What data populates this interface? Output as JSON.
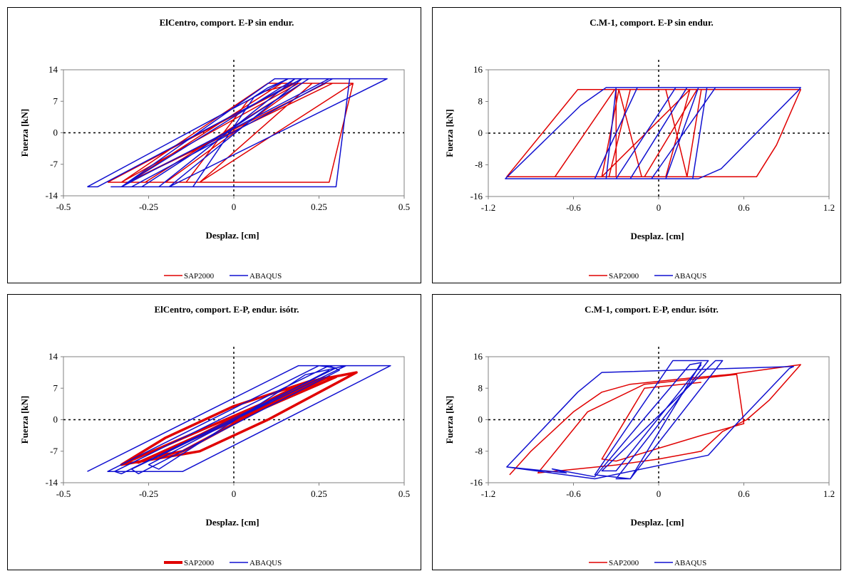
{
  "chart_data": [
    {
      "type": "line",
      "title": "ElCentro, comport. E-P sin endur.",
      "xlabel": "Desplaz. [cm]",
      "ylabel": "Fuerza [kN]",
      "xlim": [
        -0.5,
        0.5
      ],
      "ylim": [
        -14,
        14
      ],
      "xticks": [
        "-0.5",
        "-0.25",
        "0",
        "0.25",
        "0.5"
      ],
      "yticks": [
        "14",
        "7",
        "0",
        "-7",
        "-14"
      ],
      "grid": false,
      "legend": "bottom",
      "series": [
        {
          "name": "SAP2000",
          "color": "#e00000",
          "thick": false,
          "x": [
            -0.37,
            -0.33,
            0.19,
            0.23,
            0.35,
            -0.1,
            0.23,
            0.27,
            -0.31,
            0.14,
            0.35,
            0.28,
            -0.2,
            -0.36,
            -0.33,
            0.1,
            0.29,
            -0.31,
            -0.2,
            0.2,
            0.2,
            -0.26,
            -0.14,
            0.04,
            0.08,
            0.18,
            -0.37
          ],
          "y": [
            -11.0,
            -11.0,
            11.0,
            11.0,
            11.0,
            -11.0,
            11.0,
            11.0,
            -11.0,
            11.0,
            11.0,
            -11.0,
            -11.0,
            -11.0,
            -11.0,
            11.0,
            11.0,
            -11.0,
            -11.0,
            11.0,
            11.0,
            -11.0,
            -11.0,
            7.0,
            9.0,
            11.0,
            -11.0
          ]
        },
        {
          "name": "ABAQUS",
          "color": "#1010d0",
          "thick": false,
          "x": [
            -0.43,
            -0.4,
            0.2,
            0.22,
            0.45,
            -0.19,
            0.2,
            0.28,
            -0.33,
            0.18,
            0.34,
            0.3,
            -0.26,
            -0.36,
            -0.33,
            0.12,
            0.29,
            -0.3,
            -0.22,
            0.18,
            0.22,
            -0.27,
            -0.12,
            0.06,
            0.1,
            0.16,
            -0.43
          ],
          "y": [
            -12.0,
            -12.0,
            12.0,
            12.0,
            12.0,
            -12.0,
            12.0,
            12.0,
            -12.0,
            12.0,
            12.0,
            -12.0,
            -12.0,
            -12.0,
            -12.0,
            12.0,
            12.0,
            -12.0,
            -12.0,
            12.0,
            12.0,
            -12.0,
            -12.0,
            8.0,
            10.0,
            12.0,
            -12.0
          ]
        }
      ]
    },
    {
      "type": "line",
      "title": "C.M-1, comport. E-P sin endur.",
      "xlabel": "Desplaz. [cm]",
      "ylabel": "Fuerza [kN]",
      "xlim": [
        -1.2,
        1.2
      ],
      "ylim": [
        -16,
        16
      ],
      "xticks": [
        "-1.2",
        "-0.6",
        "0",
        "0.6",
        "1.2"
      ],
      "yticks": [
        "16",
        "8",
        "0",
        "-8",
        "-16"
      ],
      "grid": false,
      "legend": "bottom",
      "series": [
        {
          "name": "SAP2000",
          "color": "#e00000",
          "thick": false,
          "x": [
            -1.07,
            -0.57,
            1.0,
            0.83,
            0.69,
            0.3,
            -1.07,
            -0.73,
            -0.31,
            0.2,
            0.27,
            -0.1,
            -0.45,
            -0.35,
            -0.2,
            0.17,
            0.3,
            0.2,
            -0.12,
            -0.28,
            -0.4,
            0.22,
            0.05,
            -0.3,
            -0.3,
            0.05,
            0.2
          ],
          "y": [
            -11.0,
            11.0,
            11.0,
            -3.0,
            -11.0,
            -11.0,
            -11.0,
            -11.0,
            11.0,
            11.0,
            11.0,
            -11.0,
            -11.0,
            -11.0,
            11.0,
            11.0,
            11.0,
            -11.0,
            -11.0,
            11.0,
            -11.0,
            11.0,
            -11.0,
            -11.0,
            11.0,
            11.0,
            -11.0
          ]
        },
        {
          "name": "ABAQUS",
          "color": "#1010d0",
          "thick": false,
          "x": [
            -1.08,
            -0.55,
            -0.37,
            1.0,
            0.99,
            0.44,
            0.28,
            -1.08,
            -0.41,
            -0.37,
            -0.3,
            -0.18,
            0.15,
            0.34,
            0.24,
            -0.18,
            -0.45,
            -0.15,
            0.18,
            0.4,
            -0.05,
            -0.3,
            0.12,
            0.28,
            0.05,
            -0.2,
            0.2
          ],
          "y": [
            -11.5,
            7.0,
            11.5,
            11.5,
            11.0,
            -9.0,
            -11.5,
            -11.5,
            -11.5,
            -11.5,
            11.5,
            11.5,
            11.5,
            11.5,
            -11.5,
            -11.5,
            -11.5,
            11.5,
            11.5,
            11.5,
            -11.5,
            -11.5,
            11.5,
            11.5,
            -11.5,
            -11.5,
            11.5
          ]
        }
      ]
    },
    {
      "type": "line",
      "title": "ElCentro, comport. E-P, endur. isótr.",
      "xlabel": "Desplaz. [cm]",
      "ylabel": "Fuerza [kN]",
      "xlim": [
        -0.5,
        0.5
      ],
      "ylim": [
        -14,
        14
      ],
      "xticks": [
        "-0.5",
        "-0.25",
        "0",
        "0.25",
        "0.5"
      ],
      "yticks": [
        "14",
        "7",
        "0",
        "-7",
        "-14"
      ],
      "grid": false,
      "legend": "bottom",
      "series": [
        {
          "name": "SAP2000",
          "color": "#e00000",
          "thick": true,
          "x": [
            -0.33,
            -0.2,
            0.0,
            0.22,
            0.36,
            0.1,
            -0.1,
            -0.33,
            -0.3,
            0.25,
            0.3,
            -0.28,
            -0.25,
            0.28,
            0.2,
            -0.22,
            -0.15,
            0.22
          ],
          "y": [
            -10.0,
            -4.0,
            3.0,
            8.5,
            10.5,
            0.0,
            -7.0,
            -10.0,
            -9.0,
            9.0,
            9.5,
            -9.5,
            -8.5,
            9.5,
            8.0,
            -8.0,
            -7.0,
            8.0
          ]
        },
        {
          "name": "ABAQUS",
          "color": "#1010d0",
          "thick": false,
          "x": [
            -0.43,
            0.19,
            0.46,
            -0.15,
            -0.37,
            0.25,
            0.3,
            -0.33,
            -0.35,
            0.28,
            0.31,
            -0.28,
            -0.3,
            0.33,
            0.21,
            -0.22,
            -0.25,
            0.28
          ],
          "y": [
            -11.5,
            12.0,
            12.0,
            -11.5,
            -11.5,
            12.0,
            11.5,
            -12.0,
            -11.5,
            12.0,
            11.0,
            -12.0,
            -11.0,
            12.0,
            10.0,
            -11.0,
            -10.0,
            11.0
          ]
        }
      ]
    },
    {
      "type": "line",
      "title": "C.M-1, comport. E-P, endur. isótr.",
      "xlabel": "Desplaz. [cm]",
      "ylabel": "Fuerza [kN]",
      "xlim": [
        -1.2,
        1.2
      ],
      "ylim": [
        -16,
        16
      ],
      "xticks": [
        "-1.2",
        "-0.6",
        "0",
        "0.6",
        "1.2"
      ],
      "yticks": [
        "16",
        "8",
        "0",
        "-8",
        "-16"
      ],
      "grid": false,
      "legend": "bottom",
      "series": [
        {
          "name": "SAP2000",
          "color": "#e00000",
          "thick": false,
          "x": [
            -1.05,
            -0.9,
            -0.6,
            -0.4,
            -0.2,
            0.2,
            0.5,
            1.0,
            0.78,
            0.62,
            0.45,
            0.3,
            0.0,
            -0.3,
            -0.85,
            -0.5,
            -0.1,
            0.3,
            0.55,
            0.6,
            0.3,
            -0.3,
            -0.4,
            -0.1,
            0.3
          ],
          "y": [
            -14.0,
            -8.0,
            2.0,
            7.0,
            9.0,
            10.5,
            11.5,
            14.0,
            5.0,
            0.0,
            -3.0,
            -8.0,
            -10.0,
            -11.5,
            -13.5,
            2.0,
            9.0,
            10.5,
            11.5,
            -1.0,
            -4.0,
            -10.5,
            -10.0,
            8.0,
            9.5
          ]
        },
        {
          "name": "ABAQUS",
          "color": "#1010d0",
          "thick": false,
          "x": [
            -1.07,
            -0.57,
            -0.4,
            0.95,
            0.92,
            0.55,
            0.35,
            -0.45,
            -1.07,
            -0.65,
            -0.75,
            -0.45,
            0.22,
            0.3,
            -0.2,
            -0.45,
            0.1,
            0.35,
            -0.3,
            -0.2,
            0.45,
            0.4,
            -0.4,
            -0.3,
            0.3
          ],
          "y": [
            -12.0,
            7.0,
            12.0,
            13.5,
            13.0,
            -1.0,
            -9.0,
            -15.0,
            -12.0,
            -13.5,
            -12.5,
            -14.5,
            14.0,
            14.5,
            -15.0,
            -14.0,
            15.0,
            15.0,
            -15.0,
            -15.0,
            15.0,
            15.0,
            -13.0,
            -13.0,
            14.0
          ]
        }
      ]
    }
  ]
}
